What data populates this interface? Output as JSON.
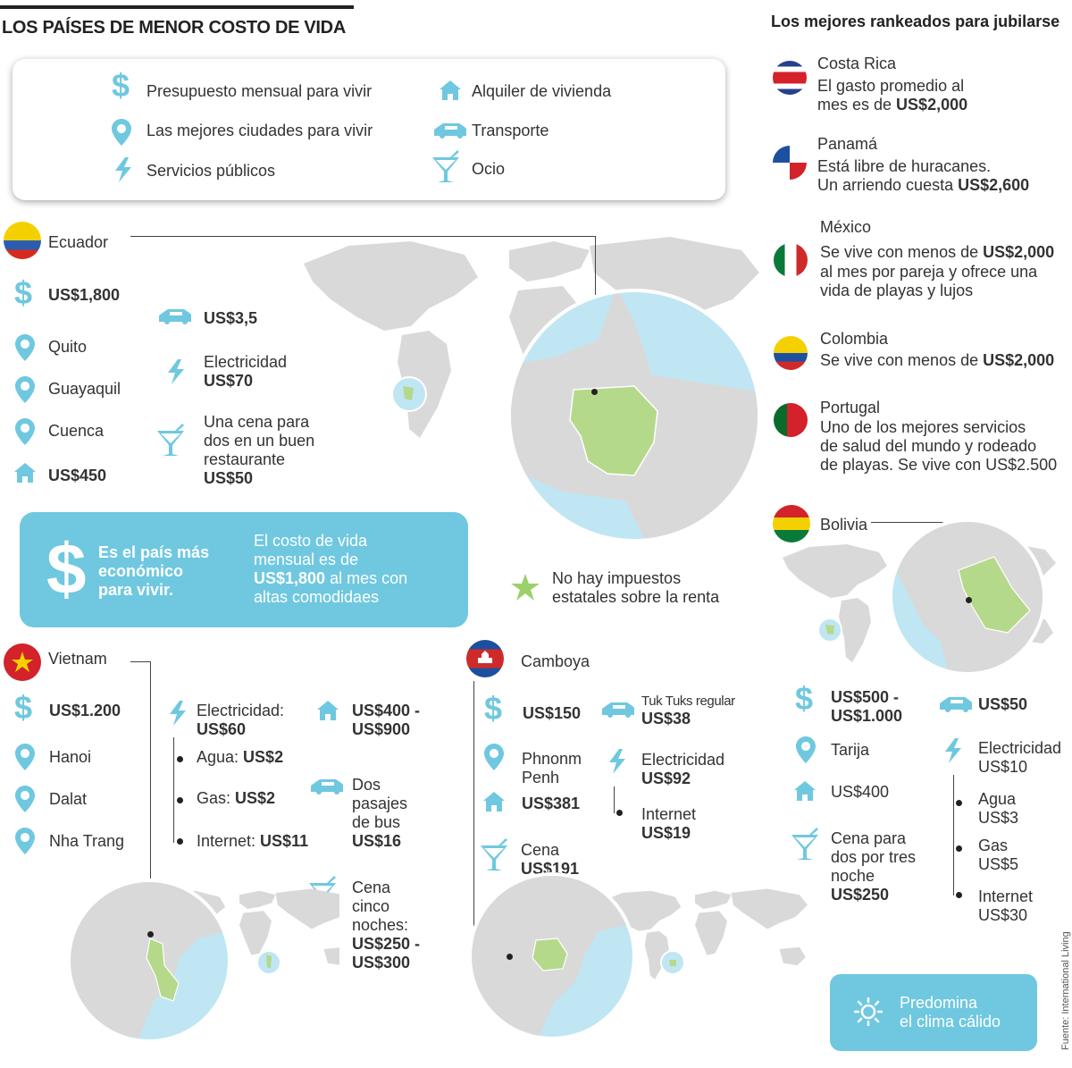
{
  "header": {
    "title": "LOS PAÍSES DE MENOR COSTO DE VIDA",
    "ranked_title": "Los mejores rankeados para jubilarse"
  },
  "legend": {
    "budget": "Presupuesto mensual para vivir",
    "cities": "Las mejores ciudades para vivir",
    "utilities": "Servicios públicos",
    "rent": "Alquiler de vivienda",
    "transport": "Transporte",
    "leisure": "Ocio"
  },
  "ecuador": {
    "name": "Ecuador",
    "budget": "US$1,800",
    "cities": [
      "Quito",
      "Guayaquil",
      "Cuenca"
    ],
    "rent": "US$450",
    "transport": "US$3,5",
    "electricity_label": "Electricidad",
    "electricity": "US$70",
    "dinner_lines": [
      "Una cena para",
      "dos en un buen",
      "restaurante"
    ],
    "dinner": "US$50",
    "highlight_left": [
      "Es el país más",
      "económico",
      "para vivir."
    ],
    "highlight_right_1": "El costo de vida",
    "highlight_right_2": "mensual es de",
    "highlight_right_bold": "US$1,800",
    "highlight_right_3": " al mes con",
    "highlight_right_4": "altas comodidaes",
    "tax_note": [
      "No hay impuestos",
      "estatales sobre la renta"
    ]
  },
  "ranked": [
    {
      "name": "Costa Rica",
      "lines": [
        "El gasto promedio al",
        "mes es de "
      ],
      "bold": "US$2,000"
    },
    {
      "name": "Panamá",
      "lines": [
        "Está libre de huracanes.",
        "Un arriendo cuesta "
      ],
      "bold": "US$2,600"
    },
    {
      "name": "México",
      "lines": [
        "Se vive con menos de ",
        "al mes por pareja y ofrece una",
        "vida de playas y lujos"
      ],
      "bold": "US$2,000"
    },
    {
      "name": "Colombia",
      "lines": [
        "Se vive con menos de "
      ],
      "bold": "US$2,000"
    },
    {
      "name": "Portugal",
      "lines": [
        "Uno de los mejores servicios",
        "de salud del mundo y rodeado",
        "de playas. Se vive con US$2.500"
      ]
    }
  ],
  "bolivia": {
    "name": "Bolivia",
    "budget": [
      "US$500 -",
      "US$1.000"
    ],
    "transport": "US$50",
    "city": "Tarija",
    "rent": "US$400",
    "electricity_label": "Electricidad",
    "electricity": "US$10",
    "water_label": "Agua",
    "water": "US$3",
    "gas_label": "Gas",
    "gas": "US$5",
    "internet_label": "Internet",
    "internet": "US$30",
    "dinner_lines": [
      "Cena para",
      "dos por tres",
      "noche"
    ],
    "dinner": "US$250",
    "climate": [
      "Predomina",
      "el clima cálido"
    ]
  },
  "vietnam": {
    "name": "Vietnam",
    "budget": "US$1.200",
    "cities": [
      "Hanoi",
      "Dalat",
      "Nha Trang"
    ],
    "electricity_label": "Electricidad:",
    "electricity": "US$60",
    "water_label": "Agua: ",
    "water": "US$2",
    "gas_label": "Gas: ",
    "gas": "US$2",
    "internet_label": "Internet: ",
    "internet": "US$11",
    "rent": [
      "US$400 -",
      "US$900"
    ],
    "bus_lines": [
      "Dos",
      "pasajes",
      "de bus"
    ],
    "bus": "US$16",
    "dinner_lines": [
      "Cena",
      "cinco",
      "noches:"
    ],
    "dinner": [
      "US$250 -",
      "US$300"
    ]
  },
  "cambodia": {
    "name": "Camboya",
    "budget": "US$150",
    "city": [
      "Phnonm",
      "Penh"
    ],
    "rent": "US$381",
    "dinner_label": "Cena",
    "dinner": "US$191",
    "tuk_label": "Tuk Tuks regular",
    "tuk": "US$38",
    "electricity_label": "Electricidad",
    "electricity": "US$92",
    "internet_label": "Internet",
    "internet": "US$19"
  },
  "source": "Fuente: International Living",
  "colors": {
    "accent": "#6fc8df",
    "land": "#d9d9d9",
    "highlight": "#b5d98a",
    "water": "#bfe6f2"
  }
}
